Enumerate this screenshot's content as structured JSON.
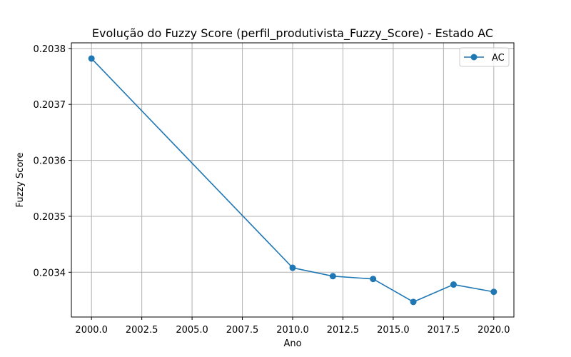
{
  "chart_data": {
    "type": "line",
    "title": "Evolução do Fuzzy Score (perfil_produtivista_Fuzzy_Score) - Estado AC",
    "xlabel": "Ano",
    "ylabel": "Fuzzy Score",
    "xlim": [
      1999.0,
      2021.0
    ],
    "ylim": [
      0.20332,
      0.20381
    ],
    "xticks": [
      2000.0,
      2002.5,
      2005.0,
      2007.5,
      2010.0,
      2012.5,
      2015.0,
      2017.5,
      2020.0
    ],
    "xtick_labels": [
      "2000.0",
      "2002.5",
      "2005.0",
      "2007.5",
      "2010.0",
      "2012.5",
      "2015.0",
      "2017.5",
      "2020.0"
    ],
    "yticks": [
      0.2034,
      0.2035,
      0.2036,
      0.2037,
      0.2038
    ],
    "ytick_labels": [
      "0.2034",
      "0.2035",
      "0.2036",
      "0.2037",
      "0.2038"
    ],
    "grid": true,
    "legend_position": "top-right",
    "series": [
      {
        "name": "AC",
        "color": "#1f77b4",
        "marker": "circle",
        "x": [
          2000,
          2010,
          2012,
          2014,
          2016,
          2018,
          2020
        ],
        "y": [
          0.203782,
          0.203408,
          0.203393,
          0.203388,
          0.203347,
          0.203378,
          0.203365
        ]
      }
    ]
  }
}
